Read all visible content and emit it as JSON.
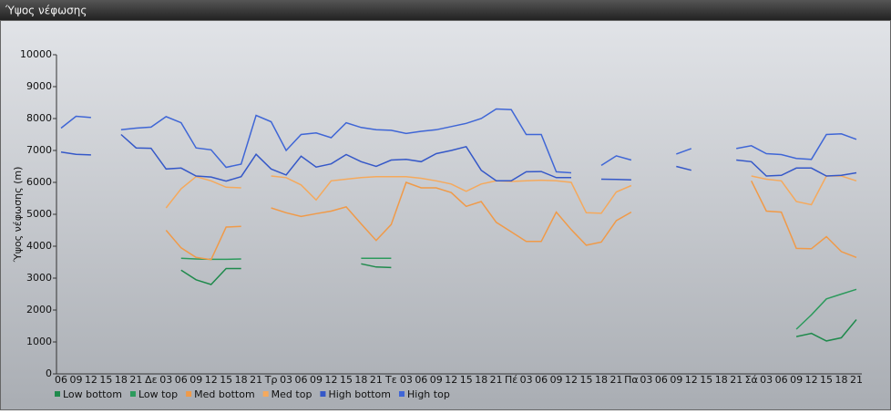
{
  "chart_data": {
    "type": "line",
    "title": "Ύψος νέφωσης",
    "y_label": "Ύψος νέφωσης (m)",
    "categories": [
      "06",
      "09",
      "12",
      "15",
      "18",
      "21",
      "Δε",
      "03",
      "06",
      "09",
      "12",
      "15",
      "18",
      "21",
      "Τρ",
      "03",
      "06",
      "09",
      "12",
      "15",
      "18",
      "21",
      "Τε",
      "03",
      "06",
      "09",
      "12",
      "15",
      "18",
      "21",
      "Πέ",
      "03",
      "06",
      "09",
      "12",
      "15",
      "18",
      "21",
      "Πα",
      "03",
      "06",
      "09",
      "12",
      "15",
      "18",
      "21",
      "Σά",
      "03",
      "06",
      "09",
      "12",
      "15",
      "18",
      "21"
    ],
    "ylim": [
      0,
      10000
    ],
    "yticks": [
      0,
      1000,
      2000,
      3000,
      4000,
      5000,
      6000,
      7000,
      8000,
      9000,
      10000
    ],
    "legend": "bottom-left",
    "series": [
      {
        "name": "Low bottom",
        "color": "#1f8a4c",
        "values": [
          null,
          null,
          null,
          null,
          null,
          null,
          null,
          null,
          3250,
          2950,
          2800,
          3300,
          3300,
          null,
          null,
          null,
          null,
          null,
          null,
          null,
          3450,
          3350,
          3330,
          null,
          null,
          null,
          null,
          null,
          null,
          null,
          null,
          null,
          null,
          null,
          null,
          null,
          null,
          null,
          null,
          null,
          null,
          null,
          null,
          null,
          null,
          null,
          null,
          null,
          null,
          1170,
          1270,
          1030,
          1130,
          1700
        ]
      },
      {
        "name": "Low top",
        "color": "#2c9a5c",
        "values": [
          null,
          null,
          null,
          null,
          null,
          null,
          null,
          null,
          3620,
          3600,
          3590,
          3590,
          3600,
          null,
          null,
          null,
          null,
          null,
          null,
          null,
          3620,
          3620,
          3620,
          null,
          null,
          null,
          null,
          null,
          null,
          null,
          null,
          null,
          null,
          null,
          null,
          null,
          null,
          null,
          null,
          null,
          null,
          null,
          null,
          null,
          null,
          null,
          null,
          null,
          null,
          1400,
          1850,
          2350,
          2500,
          2650
        ]
      },
      {
        "name": "Med bottom",
        "color": "#f09a48",
        "values": [
          null,
          null,
          null,
          null,
          null,
          null,
          null,
          4500,
          3950,
          3650,
          3580,
          4600,
          4620,
          null,
          5200,
          5050,
          4930,
          5020,
          5100,
          5230,
          4700,
          4180,
          4680,
          6000,
          5830,
          5830,
          5680,
          5250,
          5400,
          4750,
          4450,
          4150,
          4150,
          5070,
          4520,
          4030,
          4130,
          4800,
          5070,
          null,
          null,
          null,
          null,
          null,
          null,
          null,
          6050,
          5100,
          5070,
          3930,
          3920,
          4300,
          3830,
          3650
        ]
      },
      {
        "name": "Med top",
        "color": "#f5a95c",
        "values": [
          null,
          null,
          null,
          null,
          null,
          null,
          null,
          5200,
          5800,
          6180,
          6050,
          5850,
          5830,
          null,
          6200,
          6150,
          5920,
          5450,
          6050,
          6100,
          6150,
          6180,
          6180,
          6180,
          6130,
          6050,
          5950,
          5720,
          5950,
          6050,
          6030,
          6050,
          6070,
          6050,
          6000,
          5050,
          5030,
          5700,
          5900,
          null,
          null,
          null,
          null,
          null,
          null,
          null,
          6200,
          6100,
          6050,
          5400,
          5300,
          6200,
          6200,
          6050
        ]
      },
      {
        "name": "High bottom",
        "color": "#3558c8",
        "values": [
          6950,
          6880,
          6860,
          null,
          7500,
          7080,
          7070,
          6420,
          6450,
          6200,
          6170,
          6040,
          6180,
          6880,
          6420,
          6230,
          6820,
          6480,
          6580,
          6870,
          6650,
          6500,
          6700,
          6720,
          6650,
          6900,
          7000,
          7120,
          6380,
          6050,
          6050,
          6330,
          6340,
          6150,
          6150,
          null,
          6100,
          6090,
          6080,
          null,
          null,
          6500,
          6380,
          null,
          null,
          6700,
          6650,
          6200,
          6220,
          6450,
          6450,
          6200,
          6220,
          6300
        ]
      },
      {
        "name": "High top",
        "color": "#3f66d6",
        "values": [
          7700,
          8070,
          8030,
          null,
          7650,
          7700,
          7730,
          8060,
          7870,
          7080,
          7020,
          6470,
          6570,
          8100,
          7900,
          7000,
          7500,
          7550,
          7400,
          7870,
          7720,
          7650,
          7630,
          7530,
          7600,
          7650,
          7750,
          7850,
          8000,
          8300,
          8280,
          7500,
          7500,
          6330,
          6300,
          null,
          6530,
          6830,
          6700,
          null,
          null,
          6890,
          7060,
          null,
          null,
          7060,
          7150,
          6900,
          6870,
          6750,
          6720,
          7500,
          7520,
          7350
        ]
      }
    ]
  }
}
